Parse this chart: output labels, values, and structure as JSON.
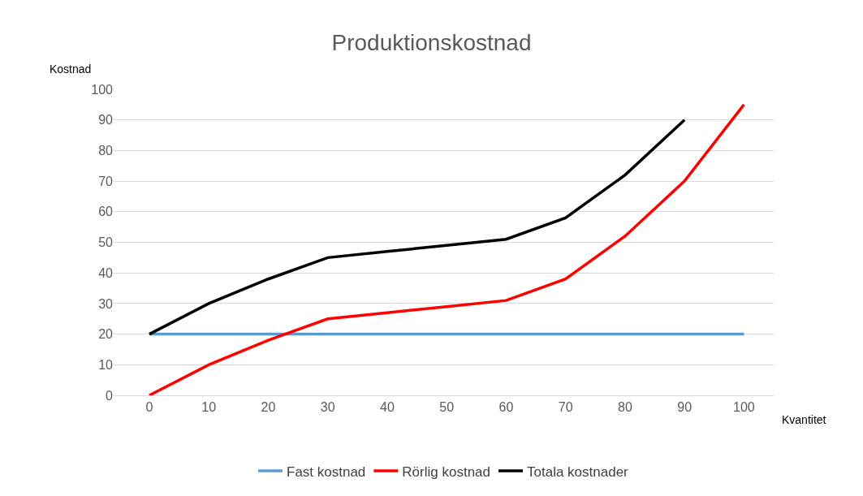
{
  "chart_data": {
    "type": "line",
    "title": "Produktionskostnad",
    "ylabel": "Kostnad",
    "xlabel": "Kvantitet",
    "categories": [
      "0",
      "10",
      "20",
      "30",
      "40",
      "50",
      "60",
      "70",
      "80",
      "90",
      "100"
    ],
    "series": [
      {
        "name": "Fast kostnad",
        "color": "#5b9bd5",
        "values": [
          20,
          20,
          20,
          20,
          20,
          20,
          20,
          20,
          20,
          20,
          20
        ]
      },
      {
        "name": "Rörlig kostnad",
        "color": "#ff0000",
        "values": [
          0,
          10,
          18,
          25,
          27,
          29,
          31,
          38,
          52,
          70,
          95
        ]
      },
      {
        "name": "Totala kostnader",
        "color": "#000000",
        "values": [
          20,
          30,
          38,
          45,
          47,
          49,
          51,
          58,
          72,
          90,
          null
        ]
      }
    ],
    "ylim": [
      0,
      100
    ],
    "yticks": [
      0,
      10,
      20,
      30,
      40,
      50,
      60,
      70,
      80,
      90,
      100
    ],
    "grid": "y",
    "legend": "bottom",
    "marker": "none",
    "line_style": "solid"
  }
}
